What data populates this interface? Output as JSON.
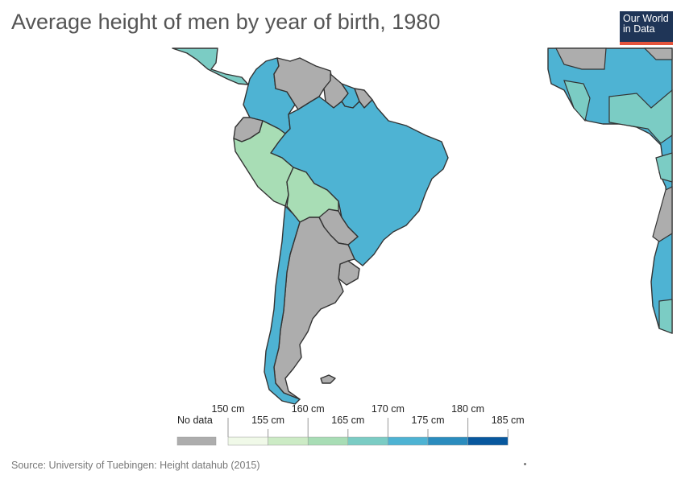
{
  "title": "Average height of men by year of birth, 1980",
  "logo": {
    "line1": "Our World",
    "line2": "in Data",
    "bg": "#1f3557",
    "accent": "#e5543c"
  },
  "legend": {
    "no_data_label": "No data",
    "no_data_color": "#adadad",
    "bins": [
      {
        "color": "#f0f9e8"
      },
      {
        "color": "#ccebc5"
      },
      {
        "color": "#a8ddb5"
      },
      {
        "color": "#7bccc4"
      },
      {
        "color": "#4eb3d3"
      },
      {
        "color": "#2b8cbe"
      },
      {
        "color": "#08589e"
      }
    ],
    "tick_labels_upper": [
      "150 cm",
      "160 cm",
      "170 cm",
      "180 cm"
    ],
    "tick_labels_lower": [
      "155 cm",
      "165 cm",
      "175 cm",
      "185 cm"
    ]
  },
  "regions": [
    {
      "name": "Brazil",
      "color": "#4eb3d3"
    },
    {
      "name": "Colombia",
      "color": "#4eb3d3"
    },
    {
      "name": "Venezuela",
      "color": "#adadad"
    },
    {
      "name": "Guyana",
      "color": "#adadad"
    },
    {
      "name": "Suriname",
      "color": "#4eb3d3"
    },
    {
      "name": "French Guiana",
      "color": "#adadad"
    },
    {
      "name": "Ecuador",
      "color": "#adadad"
    },
    {
      "name": "Peru",
      "color": "#a8ddb5"
    },
    {
      "name": "Bolivia",
      "color": "#a8ddb5"
    },
    {
      "name": "Paraguay",
      "color": "#adadad"
    },
    {
      "name": "Argentina",
      "color": "#adadad"
    },
    {
      "name": "Uruguay",
      "color": "#adadad"
    },
    {
      "name": "Chile",
      "color": "#4eb3d3"
    },
    {
      "name": "Falkland Islands",
      "color": "#adadad"
    },
    {
      "name": "Central America",
      "color": "#7bccc4"
    },
    {
      "name": "Africa",
      "color": "#4eb3d3"
    }
  ],
  "source": "Source: University of Tuebingen: Height datahub (2015)"
}
